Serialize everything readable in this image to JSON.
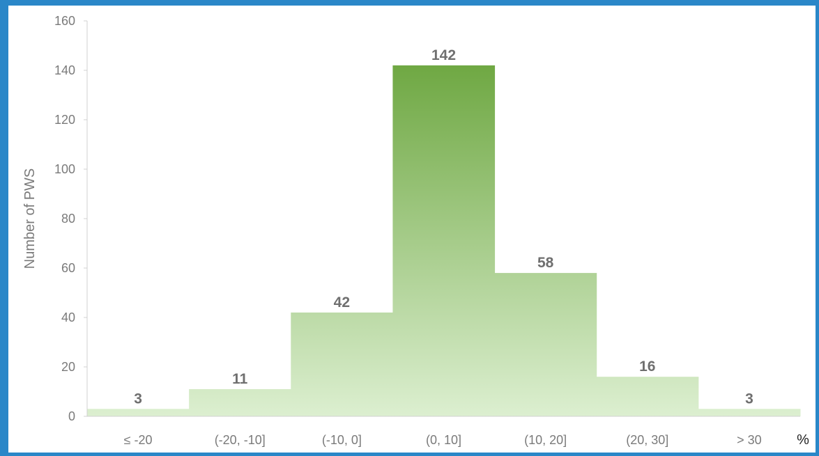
{
  "colors": {
    "frame_border": "#2a87c8",
    "bar_top": "#6fa843",
    "bar_bottom": "#dcefd0",
    "text": "#7a7a7a",
    "value_text": "#6f6f6f"
  },
  "chart_data": {
    "type": "bar",
    "categories": [
      "≤ -20",
      "(-20, -10]",
      "(-10, 0]",
      "(0, 10]",
      "(10, 20]",
      "(20, 30]",
      "> 30"
    ],
    "values": [
      3,
      11,
      42,
      142,
      58,
      16,
      3
    ],
    "ylabel": "Number of PWS",
    "x_unit": "%",
    "ylim": [
      0,
      160
    ],
    "yticks": [
      0,
      20,
      40,
      60,
      80,
      100,
      120,
      140,
      160
    ],
    "grid": false,
    "legend": "none",
    "bar_style": "adjacent bars with vertical green gradient",
    "data_labels": true
  }
}
